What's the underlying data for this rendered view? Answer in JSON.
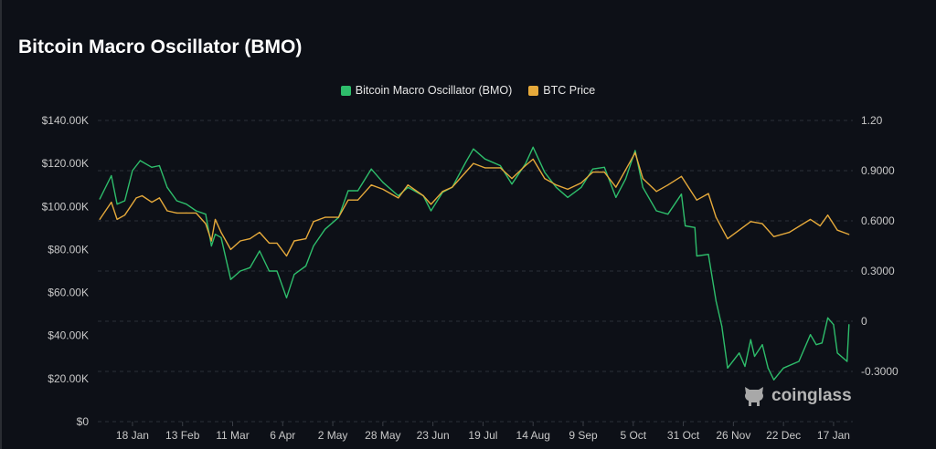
{
  "title": "Bitcoin Macro Oscillator (BMO)",
  "chart_data": {
    "type": "line",
    "title": "Bitcoin Macro Oscillator (BMO)",
    "legend_position": "top-center",
    "grid": true,
    "x_tick_labels": [
      "18 Jan",
      "13 Feb",
      "11 Mar",
      "6 Apr",
      "2 May",
      "28 May",
      "23 Jun",
      "19 Jul",
      "14 Aug",
      "9 Sep",
      "5 Oct",
      "31 Oct",
      "26 Nov",
      "22 Dec",
      "17 Jan"
    ],
    "xlim": [
      "2024-12-31",
      "2026-01-27"
    ],
    "left_axis": {
      "ticks": [
        "$0",
        "$20.00K",
        "$40.00K",
        "$60.00K",
        "$80.00K",
        "$100.00K",
        "$120.00K",
        "$140.00K"
      ],
      "ylim": [
        0,
        140000
      ]
    },
    "right_axis": {
      "ticks": [
        "-0.3000",
        "0",
        "0.3000",
        "0.6000",
        "0.9000",
        "1.20"
      ],
      "ylim": [
        -0.6,
        1.2
      ]
    },
    "series": [
      {
        "name": "Bitcoin Macro Oscillator (BMO)",
        "axis": "right",
        "color": "#2ebd6b",
        "points": [
          [
            "2025-01-01",
            0.73
          ],
          [
            "2025-01-07",
            0.87
          ],
          [
            "2025-01-10",
            0.7
          ],
          [
            "2025-01-14",
            0.72
          ],
          [
            "2025-01-18",
            0.9
          ],
          [
            "2025-01-22",
            0.96
          ],
          [
            "2025-01-28",
            0.92
          ],
          [
            "2025-02-01",
            0.93
          ],
          [
            "2025-02-05",
            0.8
          ],
          [
            "2025-02-10",
            0.72
          ],
          [
            "2025-02-15",
            0.7
          ],
          [
            "2025-02-20",
            0.66
          ],
          [
            "2025-02-25",
            0.64
          ],
          [
            "2025-02-28",
            0.45
          ],
          [
            "2025-03-02",
            0.52
          ],
          [
            "2025-03-05",
            0.5
          ],
          [
            "2025-03-10",
            0.25
          ],
          [
            "2025-03-15",
            0.3
          ],
          [
            "2025-03-20",
            0.32
          ],
          [
            "2025-03-25",
            0.42
          ],
          [
            "2025-03-30",
            0.3
          ],
          [
            "2025-04-03",
            0.3
          ],
          [
            "2025-04-08",
            0.14
          ],
          [
            "2025-04-12",
            0.28
          ],
          [
            "2025-04-18",
            0.33
          ],
          [
            "2025-04-22",
            0.45
          ],
          [
            "2025-04-28",
            0.55
          ],
          [
            "2025-05-05",
            0.62
          ],
          [
            "2025-05-10",
            0.78
          ],
          [
            "2025-05-15",
            0.78
          ],
          [
            "2025-05-22",
            0.91
          ],
          [
            "2025-05-28",
            0.83
          ],
          [
            "2025-06-05",
            0.75
          ],
          [
            "2025-06-10",
            0.8
          ],
          [
            "2025-06-18",
            0.75
          ],
          [
            "2025-06-22",
            0.66
          ],
          [
            "2025-06-28",
            0.77
          ],
          [
            "2025-07-03",
            0.8
          ],
          [
            "2025-07-10",
            0.95
          ],
          [
            "2025-07-14",
            1.03
          ],
          [
            "2025-07-20",
            0.97
          ],
          [
            "2025-07-28",
            0.93
          ],
          [
            "2025-08-03",
            0.82
          ],
          [
            "2025-08-10",
            0.94
          ],
          [
            "2025-08-14",
            1.04
          ],
          [
            "2025-08-20",
            0.89
          ],
          [
            "2025-08-26",
            0.8
          ],
          [
            "2025-09-01",
            0.74
          ],
          [
            "2025-09-08",
            0.8
          ],
          [
            "2025-09-14",
            0.91
          ],
          [
            "2025-09-20",
            0.92
          ],
          [
            "2025-09-26",
            0.74
          ],
          [
            "2025-10-01",
            0.85
          ],
          [
            "2025-10-06",
            1.02
          ],
          [
            "2025-10-10",
            0.8
          ],
          [
            "2025-10-17",
            0.66
          ],
          [
            "2025-10-23",
            0.64
          ],
          [
            "2025-10-30",
            0.76
          ],
          [
            "2025-11-01",
            0.57
          ],
          [
            "2025-11-06",
            0.56
          ],
          [
            "2025-11-07",
            0.39
          ],
          [
            "2025-11-13",
            0.4
          ],
          [
            "2025-11-17",
            0.12
          ],
          [
            "2025-11-20",
            -0.03
          ],
          [
            "2025-11-23",
            -0.28
          ],
          [
            "2025-11-29",
            -0.19
          ],
          [
            "2025-12-02",
            -0.27
          ],
          [
            "2025-12-05",
            -0.11
          ],
          [
            "2025-12-07",
            -0.21
          ],
          [
            "2025-12-11",
            -0.14
          ],
          [
            "2025-12-14",
            -0.28
          ],
          [
            "2025-12-17",
            -0.35
          ],
          [
            "2025-12-22",
            -0.28
          ],
          [
            "2025-12-30",
            -0.24
          ],
          [
            "2026-01-05",
            -0.08
          ],
          [
            "2026-01-08",
            -0.14
          ],
          [
            "2026-01-11",
            -0.13
          ],
          [
            "2026-01-14",
            0.02
          ],
          [
            "2026-01-17",
            -0.02
          ],
          [
            "2026-01-19",
            -0.19
          ],
          [
            "2026-01-24",
            -0.24
          ],
          [
            "2026-01-25",
            -0.02
          ]
        ]
      },
      {
        "name": "BTC Price",
        "axis": "left",
        "color": "#e5a93b",
        "points": [
          [
            "2025-01-01",
            94000
          ],
          [
            "2025-01-07",
            102000
          ],
          [
            "2025-01-10",
            94000
          ],
          [
            "2025-01-14",
            96000
          ],
          [
            "2025-01-20",
            104000
          ],
          [
            "2025-01-23",
            105000
          ],
          [
            "2025-01-28",
            102000
          ],
          [
            "2025-02-01",
            104000
          ],
          [
            "2025-02-05",
            98000
          ],
          [
            "2025-02-10",
            97000
          ],
          [
            "2025-02-15",
            97000
          ],
          [
            "2025-02-20",
            97000
          ],
          [
            "2025-02-25",
            92000
          ],
          [
            "2025-02-28",
            84000
          ],
          [
            "2025-03-02",
            94000
          ],
          [
            "2025-03-05",
            88000
          ],
          [
            "2025-03-10",
            80000
          ],
          [
            "2025-03-15",
            84000
          ],
          [
            "2025-03-20",
            85000
          ],
          [
            "2025-03-25",
            88000
          ],
          [
            "2025-03-30",
            83000
          ],
          [
            "2025-04-03",
            83000
          ],
          [
            "2025-04-08",
            77000
          ],
          [
            "2025-04-12",
            84000
          ],
          [
            "2025-04-18",
            85000
          ],
          [
            "2025-04-22",
            93000
          ],
          [
            "2025-04-28",
            95000
          ],
          [
            "2025-05-05",
            95000
          ],
          [
            "2025-05-10",
            103000
          ],
          [
            "2025-05-15",
            103000
          ],
          [
            "2025-05-22",
            110000
          ],
          [
            "2025-05-28",
            108000
          ],
          [
            "2025-06-05",
            104000
          ],
          [
            "2025-06-10",
            110000
          ],
          [
            "2025-06-18",
            105000
          ],
          [
            "2025-06-22",
            101000
          ],
          [
            "2025-06-28",
            107000
          ],
          [
            "2025-07-03",
            109000
          ],
          [
            "2025-07-10",
            116000
          ],
          [
            "2025-07-14",
            120000
          ],
          [
            "2025-07-20",
            118000
          ],
          [
            "2025-07-28",
            118000
          ],
          [
            "2025-08-03",
            113000
          ],
          [
            "2025-08-10",
            119000
          ],
          [
            "2025-08-14",
            122000
          ],
          [
            "2025-08-20",
            113000
          ],
          [
            "2025-08-26",
            110000
          ],
          [
            "2025-09-01",
            108000
          ],
          [
            "2025-09-08",
            111000
          ],
          [
            "2025-09-14",
            116000
          ],
          [
            "2025-09-20",
            116000
          ],
          [
            "2025-09-26",
            109000
          ],
          [
            "2025-10-01",
            117000
          ],
          [
            "2025-10-06",
            125000
          ],
          [
            "2025-10-10",
            113000
          ],
          [
            "2025-10-17",
            107000
          ],
          [
            "2025-10-23",
            110000
          ],
          [
            "2025-10-30",
            114000
          ],
          [
            "2025-11-07",
            103000
          ],
          [
            "2025-11-13",
            106000
          ],
          [
            "2025-11-17",
            95000
          ],
          [
            "2025-11-23",
            85000
          ],
          [
            "2025-12-05",
            93000
          ],
          [
            "2025-12-11",
            92000
          ],
          [
            "2025-12-17",
            86000
          ],
          [
            "2025-12-25",
            88000
          ],
          [
            "2026-01-05",
            94000
          ],
          [
            "2026-01-10",
            91000
          ],
          [
            "2026-01-14",
            96000
          ],
          [
            "2026-01-19",
            89000
          ],
          [
            "2026-01-25",
            87000
          ]
        ]
      }
    ]
  },
  "watermark": "coinglass",
  "icons": {
    "logo": "coinglass-mascot-icon"
  }
}
